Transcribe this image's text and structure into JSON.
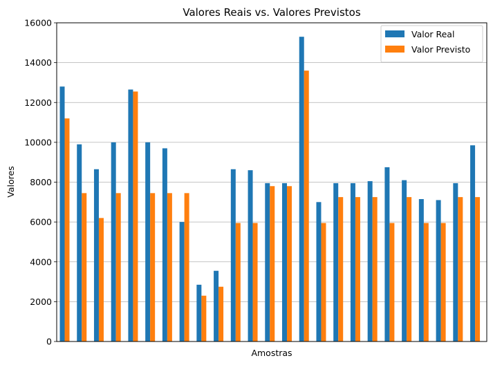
{
  "chart_data": {
    "type": "bar",
    "title": "Valores Reais vs. Valores Previstos",
    "xlabel": "Amostras",
    "ylabel": "Valores",
    "ylim": [
      0,
      16000
    ],
    "yticks": [
      0,
      2000,
      4000,
      6000,
      8000,
      10000,
      12000,
      14000,
      16000
    ],
    "grid": "horizontal",
    "legend_position": "top-right",
    "categories": [
      "",
      "",
      "",
      "",
      "",
      "",
      "",
      "",
      "",
      "",
      "",
      "",
      "",
      "",
      "",
      "",
      "",
      "",
      "",
      "",
      "",
      "",
      "",
      "",
      ""
    ],
    "series": [
      {
        "name": "Valor Real",
        "color": "#1f77b4",
        "values": [
          12800,
          9900,
          8650,
          10000,
          12650,
          10000,
          9700,
          6000,
          2850,
          3550,
          8650,
          8600,
          7950,
          7950,
          15300,
          7000,
          7950,
          7950,
          8050,
          8750,
          8100,
          7150,
          7100,
          7950,
          9850
        ]
      },
      {
        "name": "Valor Previsto",
        "color": "#ff7f0e",
        "values": [
          11200,
          7450,
          6200,
          7450,
          12550,
          7450,
          7450,
          7450,
          2300,
          2750,
          5950,
          5950,
          7800,
          7800,
          13600,
          5950,
          7250,
          7250,
          7250,
          5950,
          7250,
          5950,
          5950,
          7250,
          7250
        ]
      }
    ]
  }
}
